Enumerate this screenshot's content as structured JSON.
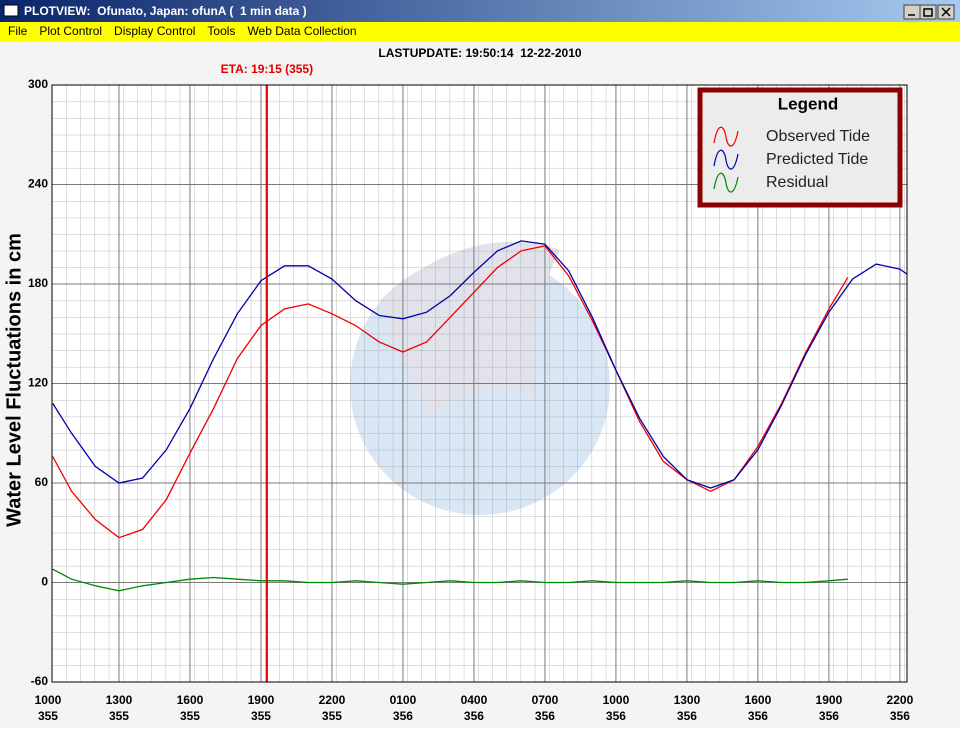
{
  "window": {
    "title": "PLOTVIEW:  Ofunato, Japan: ofunA (  1 min data )"
  },
  "menu": [
    "File",
    "Plot Control",
    "Display Control",
    "Tools",
    "Web Data Collection"
  ],
  "chart_data": {
    "type": "line",
    "title": "LASTUPDATE: 19:50:14  12-22-2010",
    "y_label": "Water Level Fluctuations in cm",
    "legend_title": "Legend",
    "legend_position": "upper right",
    "grid": true,
    "ylim": [
      -60,
      300
    ],
    "yticks": [
      -60,
      0,
      60,
      120,
      180,
      240,
      300
    ],
    "xlim": [
      0.17,
      36.3
    ],
    "xticks": [
      {
        "value": 0,
        "label": {
          "time": "1000",
          "day": "355"
        }
      },
      {
        "value": 3,
        "label": {
          "time": "1300",
          "day": "355"
        }
      },
      {
        "value": 6,
        "label": {
          "time": "1600",
          "day": "355"
        }
      },
      {
        "value": 9,
        "label": {
          "time": "1900",
          "day": "355"
        }
      },
      {
        "value": 12,
        "label": {
          "time": "2200",
          "day": "355"
        }
      },
      {
        "value": 15,
        "label": {
          "time": "0100",
          "day": "356"
        }
      },
      {
        "value": 18,
        "label": {
          "time": "0400",
          "day": "356"
        }
      },
      {
        "value": 21,
        "label": {
          "time": "0700",
          "day": "356"
        }
      },
      {
        "value": 24,
        "label": {
          "time": "1000",
          "day": "356"
        }
      },
      {
        "value": 27,
        "label": {
          "time": "1300",
          "day": "356"
        }
      },
      {
        "value": 30,
        "label": {
          "time": "1600",
          "day": "356"
        }
      },
      {
        "value": 33,
        "label": {
          "time": "1900",
          "day": "356"
        }
      },
      {
        "value": 36,
        "label": {
          "time": "2200",
          "day": "356"
        }
      }
    ],
    "eta_line": {
      "x": 9.25,
      "label": "ETA: 19:15 (355)",
      "color": "#e00000"
    },
    "series": [
      {
        "name": "Observed Tide",
        "color": "#ee0000",
        "x": [
          0.2,
          1,
          2,
          3,
          4,
          5,
          6,
          7,
          8,
          9,
          10,
          11,
          12,
          13,
          14,
          15,
          16,
          17,
          18,
          19,
          20,
          21,
          22,
          23,
          24,
          25,
          26,
          27,
          28,
          29,
          30,
          31,
          32,
          33,
          33.8
        ],
        "values": [
          76,
          55,
          38,
          27,
          32,
          50,
          78,
          105,
          135,
          155,
          165,
          168,
          162,
          155,
          145,
          139,
          145,
          160,
          175,
          190,
          200,
          203,
          185,
          158,
          128,
          97,
          73,
          62,
          55,
          62,
          82,
          108,
          138,
          165,
          184
        ]
      },
      {
        "name": "Predicted Tide",
        "color": "#0000aa",
        "x": [
          0.2,
          1,
          2,
          3,
          4,
          5,
          6,
          7,
          8,
          9,
          10,
          11,
          12,
          13,
          14,
          15,
          16,
          17,
          18,
          19,
          20,
          21,
          22,
          23,
          24,
          25,
          26,
          27,
          28,
          29,
          30,
          31,
          32,
          33,
          34,
          35,
          36,
          36.3
        ],
        "values": [
          108,
          90,
          70,
          60,
          63,
          80,
          105,
          135,
          162,
          182,
          191,
          191,
          183,
          170,
          161,
          159,
          163,
          173,
          187,
          200,
          206,
          204,
          188,
          160,
          128,
          99,
          76,
          62,
          57,
          62,
          80,
          107,
          137,
          163,
          183,
          192,
          189,
          186
        ]
      },
      {
        "name": "Residual",
        "color": "#008800",
        "x": [
          0.2,
          1,
          2,
          3,
          4,
          5,
          6,
          7,
          8,
          9,
          10,
          11,
          12,
          13,
          14,
          15,
          16,
          17,
          18,
          19,
          20,
          21,
          22,
          23,
          24,
          25,
          26,
          27,
          28,
          29,
          30,
          31,
          32,
          33,
          33.8
        ],
        "values": [
          8,
          2,
          -2,
          -5,
          -2,
          0,
          2,
          3,
          2,
          1,
          1,
          0,
          0,
          1,
          0,
          -1,
          0,
          1,
          0,
          0,
          1,
          0,
          0,
          1,
          0,
          0,
          0,
          1,
          0,
          0,
          1,
          0,
          0,
          1,
          2
        ]
      }
    ]
  }
}
